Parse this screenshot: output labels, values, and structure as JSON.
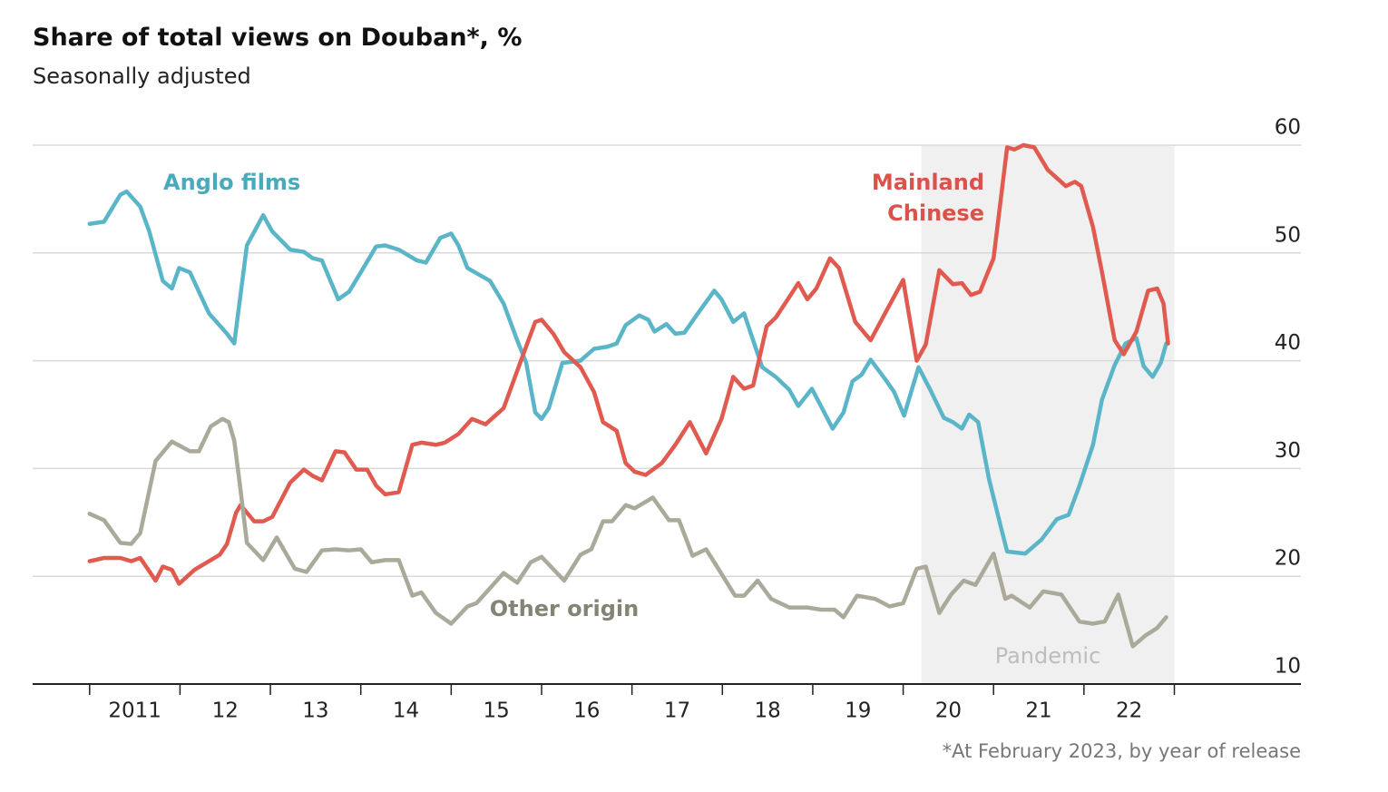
{
  "chart_data": {
    "type": "line",
    "title": "Share of total views on Douban*, %",
    "subtitle": "Seasonally adjusted",
    "note": "*At February 2023, by year of release",
    "xlim": [
      2010.37,
      2024.4
    ],
    "ylim": [
      10,
      60
    ],
    "yticks": [
      10,
      20,
      30,
      40,
      50,
      60
    ],
    "xticks": [
      {
        "value": 2011.5,
        "label": "2011"
      },
      {
        "value": 2012.5,
        "label": "12"
      },
      {
        "value": 2013.5,
        "label": "13"
      },
      {
        "value": 2014.5,
        "label": "14"
      },
      {
        "value": 2015.5,
        "label": "15"
      },
      {
        "value": 2016.5,
        "label": "16"
      },
      {
        "value": 2017.5,
        "label": "17"
      },
      {
        "value": 2018.5,
        "label": "18"
      },
      {
        "value": 2019.5,
        "label": "19"
      },
      {
        "value": 2020.5,
        "label": "20"
      },
      {
        "value": 2021.5,
        "label": "21"
      },
      {
        "value": 2022.5,
        "label": "22"
      }
    ],
    "xtick_marks": [
      2011,
      2012,
      2013,
      2014,
      2015,
      2016,
      2017,
      2018,
      2019,
      2020,
      2021,
      2022,
      2023
    ],
    "grid": true,
    "shade": {
      "label": "Pandemic",
      "from": 2020.2,
      "to": 2023
    },
    "series": [
      {
        "name": "Anglo films",
        "color": "#5bb5c8",
        "label_color": "#4aa9bd",
        "x": [
          2011.0,
          2011.16,
          2011.34,
          2011.41,
          2011.56,
          2011.66,
          2011.81,
          2011.91,
          2011.99,
          2012.11,
          2012.32,
          2012.52,
          2012.6,
          2012.74,
          2012.92,
          2013.02,
          2013.22,
          2013.37,
          2013.47,
          2013.57,
          2013.75,
          2013.87,
          2014.0,
          2014.17,
          2014.27,
          2014.42,
          2014.62,
          2014.72,
          2014.88,
          2015.0,
          2015.08,
          2015.18,
          2015.43,
          2015.58,
          2015.73,
          2015.83,
          2015.93,
          2016.0,
          2016.08,
          2016.23,
          2016.43,
          2016.58,
          2016.73,
          2016.83,
          2016.93,
          2017.08,
          2017.18,
          2017.25,
          2017.38,
          2017.48,
          2017.58,
          2017.73,
          2017.91,
          2017.99,
          2018.12,
          2018.24,
          2018.34,
          2018.44,
          2018.59,
          2018.74,
          2018.84,
          2018.99,
          2019.09,
          2019.22,
          2019.34,
          2019.44,
          2019.54,
          2019.64,
          2019.8,
          2019.9,
          2020.01,
          2020.17,
          2020.3,
          2020.45,
          2020.55,
          2020.65,
          2020.73,
          2020.83,
          2020.95,
          2021.08,
          2021.15,
          2021.35,
          2021.53,
          2021.7,
          2021.83,
          2021.95,
          2022.1,
          2022.2,
          2022.34,
          2022.46,
          2022.58,
          2022.66,
          2022.76,
          2022.85,
          2022.91
        ],
        "values": [
          52.7,
          52.9,
          55.4,
          55.7,
          54.3,
          52,
          47.4,
          46.7,
          48.6,
          48.2,
          44.4,
          42.5,
          41.6,
          50.7,
          53.5,
          52,
          50.3,
          50.1,
          49.5,
          49.3,
          45.7,
          46.4,
          48.2,
          50.6,
          50.7,
          50.3,
          49.3,
          49.1,
          51.4,
          51.8,
          50.7,
          48.6,
          47.4,
          45.3,
          41.9,
          39.8,
          35.2,
          34.6,
          35.6,
          39.8,
          40,
          41.1,
          41.3,
          41.6,
          43.3,
          44.2,
          43.8,
          42.7,
          43.4,
          42.5,
          42.6,
          44.4,
          46.5,
          45.7,
          43.6,
          44.4,
          41.9,
          39.4,
          38.5,
          37.3,
          35.8,
          37.4,
          35.8,
          33.7,
          35.2,
          38.1,
          38.7,
          40.1,
          38.3,
          37.1,
          34.9,
          39.4,
          37.3,
          34.7,
          34.3,
          33.7,
          35,
          34.3,
          29,
          24.6,
          22.3,
          22.1,
          23.4,
          25.3,
          25.7,
          28.4,
          32.2,
          36.4,
          39.6,
          41.6,
          42.1,
          39.5,
          38.5,
          39.8,
          41.6
        ]
      },
      {
        "name": "Mainland Chinese",
        "color": "#e05a50",
        "label_color": "#d9534a",
        "x": [
          2011.0,
          2011.16,
          2011.34,
          2011.46,
          2011.56,
          2011.73,
          2011.81,
          2011.91,
          2011.99,
          2012.16,
          2012.32,
          2012.44,
          2012.52,
          2012.62,
          2012.67,
          2012.82,
          2012.92,
          2013.02,
          2013.22,
          2013.37,
          2013.47,
          2013.57,
          2013.72,
          2013.82,
          2013.95,
          2014.07,
          2014.17,
          2014.27,
          2014.42,
          2014.57,
          2014.67,
          2014.83,
          2014.93,
          2015.08,
          2015.23,
          2015.38,
          2015.58,
          2015.78,
          2015.93,
          2016.0,
          2016.13,
          2016.25,
          2016.43,
          2016.58,
          2016.68,
          2016.83,
          2016.93,
          2017.03,
          2017.15,
          2017.33,
          2017.48,
          2017.64,
          2017.82,
          2017.99,
          2018.12,
          2018.24,
          2018.34,
          2018.49,
          2018.59,
          2018.74,
          2018.84,
          2018.94,
          2019.04,
          2019.19,
          2019.29,
          2019.47,
          2019.64,
          2019.8,
          2020.0,
          2020.15,
          2020.25,
          2020.4,
          2020.55,
          2020.65,
          2020.75,
          2020.85,
          2021.0,
          2021.15,
          2021.23,
          2021.33,
          2021.45,
          2021.6,
          2021.8,
          2021.9,
          2021.97,
          2022.1,
          2022.2,
          2022.34,
          2022.44,
          2022.58,
          2022.71,
          2022.81,
          2022.88,
          2022.93
        ],
        "values": [
          21.4,
          21.7,
          21.7,
          21.4,
          21.7,
          19.6,
          20.9,
          20.6,
          19.3,
          20.6,
          21.4,
          22,
          23,
          25.9,
          26.6,
          25.1,
          25.1,
          25.5,
          28.7,
          29.9,
          29.3,
          28.9,
          31.6,
          31.5,
          29.9,
          29.9,
          28.4,
          27.6,
          27.8,
          32.2,
          32.4,
          32.2,
          32.4,
          33.2,
          34.6,
          34.1,
          35.6,
          40.2,
          43.6,
          43.8,
          42.5,
          40.8,
          39.4,
          37.1,
          34.3,
          33.5,
          30.5,
          29.7,
          29.4,
          30.5,
          32.2,
          34.3,
          31.4,
          34.6,
          38.5,
          37.4,
          37.7,
          43.2,
          44,
          45.9,
          47.2,
          45.7,
          46.7,
          49.5,
          48.6,
          43.6,
          41.9,
          44.4,
          47.5,
          40,
          41.5,
          48.4,
          47.1,
          47.2,
          46.1,
          46.4,
          49.5,
          59.8,
          59.6,
          60,
          59.8,
          57.7,
          56.2,
          56.6,
          56.2,
          52.4,
          48.2,
          41.9,
          40.6,
          42.7,
          46.5,
          46.7,
          45.3,
          41.6
        ]
      },
      {
        "name": "Other origin",
        "color": "#aaa99a",
        "label_color": "#858374",
        "x": [
          2011.0,
          2011.16,
          2011.34,
          2011.46,
          2011.56,
          2011.73,
          2011.91,
          2012.11,
          2012.21,
          2012.34,
          2012.47,
          2012.54,
          2012.6,
          2012.67,
          2012.74,
          2012.92,
          2013.07,
          2013.27,
          2013.4,
          2013.57,
          2013.72,
          2013.87,
          2014.0,
          2014.12,
          2014.27,
          2014.42,
          2014.57,
          2014.67,
          2014.83,
          2015.0,
          2015.18,
          2015.28,
          2015.43,
          2015.58,
          2015.73,
          2015.88,
          2016.0,
          2016.08,
          2016.25,
          2016.43,
          2016.55,
          2016.68,
          2016.78,
          2016.93,
          2017.03,
          2017.23,
          2017.41,
          2017.52,
          2017.67,
          2017.82,
          2017.94,
          2018.14,
          2018.24,
          2018.39,
          2018.54,
          2018.74,
          2018.94,
          2019.09,
          2019.24,
          2019.34,
          2019.49,
          2019.69,
          2019.85,
          2020.0,
          2020.15,
          2020.25,
          2020.4,
          2020.53,
          2020.67,
          2020.8,
          2021.0,
          2021.13,
          2021.2,
          2021.4,
          2021.55,
          2021.75,
          2021.95,
          2022.1,
          2022.23,
          2022.38,
          2022.54,
          2022.68,
          2022.81,
          2022.91
        ],
        "values": [
          25.8,
          25.2,
          23.1,
          23,
          24,
          30.7,
          32.5,
          31.6,
          31.6,
          33.9,
          34.6,
          34.3,
          32.6,
          28,
          23.1,
          21.5,
          23.6,
          20.7,
          20.4,
          22.4,
          22.5,
          22.4,
          22.5,
          21.3,
          21.5,
          21.5,
          18.2,
          18.5,
          16.6,
          15.6,
          17.2,
          17.5,
          18.9,
          20.3,
          19.4,
          21.3,
          21.8,
          21.1,
          19.6,
          22,
          22.5,
          25.1,
          25.1,
          26.6,
          26.3,
          27.3,
          25.2,
          25.2,
          21.9,
          22.5,
          20.9,
          18.2,
          18.2,
          19.6,
          17.9,
          17.1,
          17.1,
          16.9,
          16.9,
          16.2,
          18.2,
          17.9,
          17.2,
          17.5,
          20.7,
          20.9,
          16.6,
          18.3,
          19.6,
          19.2,
          22.1,
          17.9,
          18.2,
          17.1,
          18.6,
          18.3,
          15.8,
          15.6,
          15.8,
          18.3,
          13.5,
          14.5,
          15.2,
          16.2
        ]
      }
    ]
  }
}
